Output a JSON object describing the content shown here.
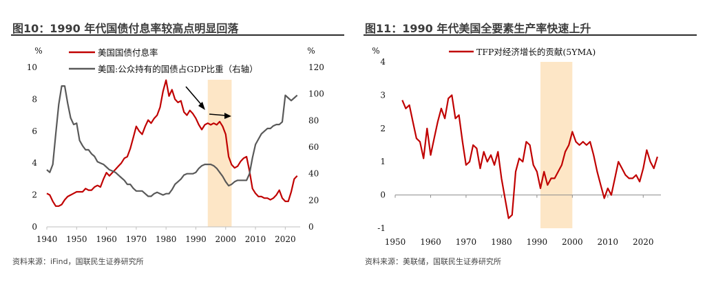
{
  "charts": [
    {
      "title": "图10：1990 年代国债付息率较高点明显回落",
      "source": "资料来源：iFind，国联民生证券研究所",
      "unit_left": "%",
      "unit_right": "%"
    },
    {
      "title": "图11：1990 年代美国全要素生产率快速上升",
      "source": "资料来源：美联储，国联民生证券研究所",
      "unit_left": "%"
    }
  ],
  "chart_data": [
    {
      "type": "line",
      "title": "图10：1990 年代国债付息率较高点明显回落",
      "xlim": [
        1940,
        2025
      ],
      "xticks": [
        1940,
        1950,
        1960,
        1970,
        1980,
        1990,
        2000,
        2010,
        2020
      ],
      "ylim": [
        0,
        10
      ],
      "yticks": [
        0,
        2,
        4,
        6,
        8,
        10
      ],
      "y2lim": [
        0,
        120
      ],
      "y2ticks": [
        0,
        20,
        40,
        60,
        80,
        100,
        120
      ],
      "highlight": [
        1994,
        2002
      ],
      "highlight_color": "#fde6c6",
      "legend_position": "top",
      "series": [
        {
          "name": "美国国债付息率",
          "color": "#c00000",
          "axis": "left",
          "x": [
            1940,
            1941,
            1942,
            1943,
            1944,
            1945,
            1946,
            1947,
            1948,
            1949,
            1950,
            1951,
            1952,
            1953,
            1954,
            1955,
            1956,
            1957,
            1958,
            1959,
            1960,
            1961,
            1962,
            1963,
            1964,
            1965,
            1966,
            1967,
            1968,
            1969,
            1970,
            1971,
            1972,
            1973,
            1974,
            1975,
            1976,
            1977,
            1978,
            1979,
            1980,
            1981,
            1982,
            1983,
            1984,
            1985,
            1986,
            1987,
            1988,
            1989,
            1990,
            1991,
            1992,
            1993,
            1994,
            1995,
            1996,
            1997,
            1998,
            1999,
            2000,
            2001,
            2002,
            2003,
            2004,
            2005,
            2006,
            2007,
            2008,
            2009,
            2010,
            2011,
            2012,
            2013,
            2014,
            2015,
            2016,
            2017,
            2018,
            2019,
            2020,
            2021,
            2022,
            2023,
            2024
          ],
          "values": [
            2.1,
            2.0,
            1.6,
            1.3,
            1.3,
            1.4,
            1.7,
            1.9,
            2.0,
            2.1,
            2.2,
            2.2,
            2.2,
            2.4,
            2.3,
            2.3,
            2.5,
            2.6,
            2.5,
            3.0,
            3.4,
            3.2,
            3.4,
            3.6,
            3.8,
            4.0,
            4.3,
            4.4,
            4.9,
            5.6,
            6.3,
            6.0,
            5.8,
            6.3,
            6.7,
            6.5,
            6.8,
            7.0,
            7.5,
            8.5,
            9.2,
            8.2,
            8.6,
            8.0,
            7.8,
            7.9,
            7.2,
            7.0,
            7.3,
            7.1,
            6.8,
            6.4,
            6.1,
            6.4,
            6.5,
            6.4,
            6.5,
            6.4,
            6.6,
            6.3,
            5.8,
            4.4,
            3.9,
            3.7,
            3.8,
            4.1,
            4.3,
            4.4,
            3.5,
            2.4,
            2.1,
            1.9,
            1.9,
            1.8,
            1.8,
            1.7,
            1.8,
            2.0,
            2.3,
            1.8,
            1.6,
            1.6,
            2.2,
            3.0,
            3.2
          ]
        },
        {
          "name": "美国:公众持有的国债占GDP比重（右轴）",
          "color": "#595959",
          "axis": "right",
          "x": [
            1940,
            1941,
            1942,
            1943,
            1944,
            1945,
            1946,
            1947,
            1948,
            1949,
            1950,
            1951,
            1952,
            1953,
            1954,
            1955,
            1956,
            1957,
            1958,
            1959,
            1960,
            1961,
            1962,
            1963,
            1964,
            1965,
            1966,
            1967,
            1968,
            1969,
            1970,
            1971,
            1972,
            1973,
            1974,
            1975,
            1976,
            1977,
            1978,
            1979,
            1980,
            1981,
            1982,
            1983,
            1984,
            1985,
            1986,
            1987,
            1988,
            1989,
            1990,
            1991,
            1992,
            1993,
            1994,
            1995,
            1996,
            1997,
            1998,
            1999,
            2000,
            2001,
            2002,
            2003,
            2004,
            2005,
            2006,
            2007,
            2008,
            2009,
            2010,
            2011,
            2012,
            2013,
            2014,
            2015,
            2016,
            2017,
            2018,
            2019,
            2020,
            2021,
            2022,
            2023,
            2024
          ],
          "values": [
            43,
            41,
            47,
            70,
            92,
            106,
            106,
            93,
            82,
            77,
            78,
            65,
            61,
            58,
            58,
            55,
            53,
            49,
            48,
            47,
            45,
            43,
            42,
            41,
            39,
            37,
            35,
            32,
            32,
            29,
            27,
            27,
            27,
            25,
            23,
            23,
            25,
            26,
            25,
            24,
            25,
            25,
            28,
            32,
            34,
            36,
            39,
            40,
            40,
            40,
            41,
            44,
            46,
            47,
            47,
            47,
            46,
            44,
            41,
            38,
            34,
            31,
            32,
            34,
            35,
            35,
            35,
            35,
            40,
            52,
            62,
            66,
            70,
            72,
            74,
            74,
            76,
            77,
            77,
            79,
            99,
            97,
            95,
            97,
            99
          ]
        }
      ],
      "annotations": [
        "arrow-down-right",
        "arrow-right"
      ]
    },
    {
      "type": "line",
      "title": "图11：1990 年代美国全要素生产率快速上升",
      "xlim": [
        1950,
        2025
      ],
      "xticks": [
        1950,
        1960,
        1970,
        1980,
        1990,
        2000,
        2010,
        2020
      ],
      "ylim": [
        -1,
        4
      ],
      "yticks": [
        -1,
        0,
        1,
        2,
        3,
        4
      ],
      "highlight": [
        1991,
        2000
      ],
      "highlight_color": "#fde6c6",
      "legend_position": "top",
      "series": [
        {
          "name": "TFP对经济增长的贡献(5YMA)",
          "color": "#c00000",
          "x": [
            1952,
            1953,
            1954,
            1955,
            1956,
            1957,
            1958,
            1959,
            1960,
            1961,
            1962,
            1963,
            1964,
            1965,
            1966,
            1967,
            1968,
            1969,
            1970,
            1971,
            1972,
            1973,
            1974,
            1975,
            1976,
            1977,
            1978,
            1979,
            1980,
            1981,
            1982,
            1983,
            1984,
            1985,
            1986,
            1987,
            1988,
            1989,
            1990,
            1991,
            1992,
            1993,
            1994,
            1995,
            1996,
            1997,
            1998,
            1999,
            2000,
            2001,
            2002,
            2003,
            2004,
            2005,
            2006,
            2007,
            2008,
            2009,
            2010,
            2011,
            2012,
            2013,
            2014,
            2015,
            2016,
            2017,
            2018,
            2019,
            2020,
            2021,
            2022,
            2023,
            2024
          ],
          "values": [
            2.85,
            2.6,
            2.7,
            2.2,
            1.7,
            1.6,
            1.1,
            2.0,
            1.2,
            1.7,
            2.2,
            2.6,
            2.3,
            2.9,
            3.0,
            2.3,
            2.4,
            1.6,
            0.9,
            1.0,
            1.5,
            1.4,
            0.8,
            1.3,
            1.0,
            1.2,
            0.9,
            1.3,
            0.5,
            -0.1,
            -0.7,
            -0.6,
            0.7,
            1.1,
            1.0,
            1.6,
            1.5,
            0.9,
            0.7,
            0.2,
            0.7,
            0.3,
            0.5,
            0.5,
            0.7,
            0.9,
            1.3,
            1.5,
            1.9,
            1.6,
            1.5,
            1.6,
            1.5,
            1.6,
            1.2,
            0.7,
            0.3,
            -0.1,
            0.2,
            0.0,
            0.5,
            1.0,
            0.8,
            0.6,
            0.5,
            0.5,
            0.6,
            0.4,
            0.8,
            1.35,
            1.0,
            0.8,
            1.15
          ]
        }
      ]
    }
  ]
}
